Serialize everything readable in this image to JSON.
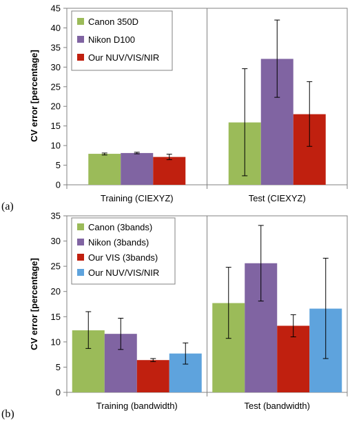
{
  "chart_data": [
    {
      "type": "bar",
      "panel_label": "(a)",
      "ylabel": "CV error [percentage]",
      "ylim": [
        0,
        45
      ],
      "yticks": [
        0,
        5,
        10,
        15,
        20,
        25,
        30,
        35,
        40,
        45
      ],
      "categories": [
        "Training (CIEXYZ)",
        "Test (CIEXYZ)"
      ],
      "legend_position": "top-left",
      "series": [
        {
          "name": "Canon 350D",
          "color": "#9bbb59",
          "values": [
            7.9,
            15.9
          ],
          "err_low": [
            7.6,
            2.3
          ],
          "err_high": [
            8.1,
            29.6
          ]
        },
        {
          "name": "Nikon D100",
          "color": "#8064a2",
          "values": [
            8.1,
            32.1
          ],
          "err_low": [
            7.9,
            22.3
          ],
          "err_high": [
            8.3,
            42.0
          ]
        },
        {
          "name": "Our NUV/VIS/NIR",
          "color": "#c0200f",
          "values": [
            7.1,
            18.0
          ],
          "err_low": [
            6.4,
            9.8
          ],
          "err_high": [
            7.8,
            26.3
          ]
        }
      ]
    },
    {
      "type": "bar",
      "panel_label": "(b)",
      "ylabel": "CV error [percentage]",
      "ylim": [
        0,
        35
      ],
      "yticks": [
        0,
        5,
        10,
        15,
        20,
        25,
        30,
        35
      ],
      "categories": [
        "Training (bandwidth)",
        "Test (bandwidth)"
      ],
      "legend_position": "top-left",
      "series": [
        {
          "name": "Canon (3bands)",
          "color": "#9bbb59",
          "values": [
            12.3,
            17.7
          ],
          "err_low": [
            8.7,
            10.7
          ],
          "err_high": [
            16.0,
            24.8
          ]
        },
        {
          "name": "Nikon (3bands)",
          "color": "#8064a2",
          "values": [
            11.6,
            25.6
          ],
          "err_low": [
            8.5,
            18.1
          ],
          "err_high": [
            14.7,
            33.1
          ]
        },
        {
          "name": "Our VIS (3bands)",
          "color": "#c0200f",
          "values": [
            6.4,
            13.2
          ],
          "err_low": [
            6.1,
            11.0
          ],
          "err_high": [
            6.7,
            15.4
          ]
        },
        {
          "name": "Our NUV/VIS/NIR",
          "color": "#5ea3dd",
          "values": [
            7.7,
            16.6
          ],
          "err_low": [
            5.6,
            6.7
          ],
          "err_high": [
            9.8,
            26.6
          ]
        }
      ]
    }
  ]
}
